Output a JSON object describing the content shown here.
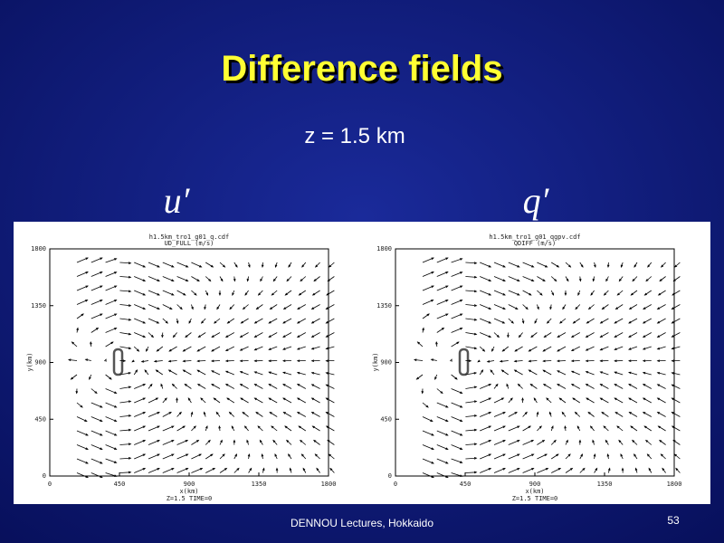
{
  "title": "Difference fields",
  "subtitle": "z = 1.5 km",
  "panels": [
    {
      "symbol": "u′",
      "file": "h1.5km_tro1_g01_q.cdf",
      "variable": "UD_FULL (m/s)",
      "x_label": "x(km)",
      "y_label": "y(km)",
      "ticks": [
        0,
        450,
        900,
        1350,
        1800
      ],
      "footer": "Z=1.5 TIME=0"
    },
    {
      "symbol": "q′",
      "file": "h1.5km_tro1_g01_qgpv.cdf",
      "variable": "QDIFF (m/s)",
      "x_label": "x(km)",
      "y_label": "y(km)",
      "ticks": [
        0,
        450,
        900,
        1350,
        1800
      ],
      "footer": "Z=1.5 TIME=0"
    }
  ],
  "footer": "DENNOU Lectures, Hokkaido",
  "page_number": "53"
}
